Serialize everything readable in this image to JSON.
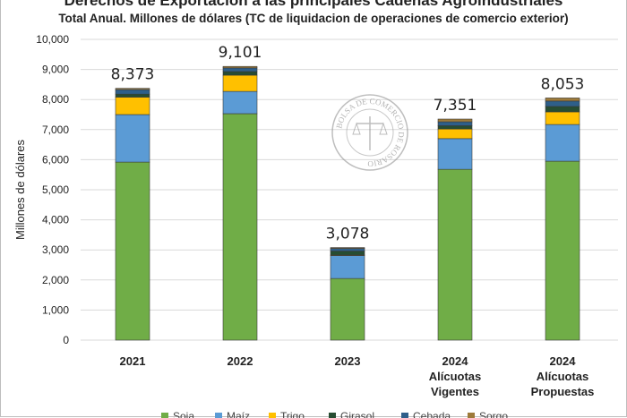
{
  "chart_data": {
    "type": "bar",
    "stacked": true,
    "title": "Derechos de Exportación a las principales Cadenas Agroindustriales",
    "subtitle": "Total Anual. Millones de dólares (TC de liquidacion de operaciones de comercio exterior)",
    "xlabel": "",
    "ylabel": "Millones de dólares",
    "ylim": [
      0,
      10000
    ],
    "yticks": [
      0,
      1000,
      2000,
      3000,
      4000,
      5000,
      6000,
      7000,
      8000,
      9000,
      10000
    ],
    "ytick_labels": [
      "0",
      "1,000",
      "2,000",
      "3,000",
      "4,000",
      "5,000",
      "6,000",
      "7,000",
      "8,000",
      "9,000",
      "10,000"
    ],
    "grid": true,
    "legend_position": "bottom",
    "categories": [
      [
        "2021"
      ],
      [
        "2022"
      ],
      [
        "2023"
      ],
      [
        "2024",
        "Alícuotas",
        "Vigentes"
      ],
      [
        "2024",
        "Alícuotas",
        "Propuestas"
      ]
    ],
    "totals": [
      8373,
      9101,
      3078,
      7351,
      8053
    ],
    "total_labels": [
      "8,373",
      "9,101",
      "3,078",
      "7,351",
      "8,053"
    ],
    "series": [
      {
        "name": "Soja",
        "color": "#70ad47",
        "values": [
          5920,
          7530,
          2050,
          5680,
          5950
        ]
      },
      {
        "name": "Maíz",
        "color": "#5b9bd5",
        "values": [
          1580,
          740,
          760,
          1020,
          1220
        ]
      },
      {
        "name": "Trigo",
        "color": "#ffc000",
        "values": [
          580,
          540,
          20,
          320,
          420
        ]
      },
      {
        "name": "Girasol",
        "color": "#264d32",
        "values": [
          100,
          120,
          130,
          110,
          180
        ]
      },
      {
        "name": "Cebada",
        "color": "#2e5f8a",
        "values": [
          150,
          120,
          90,
          130,
          180
        ]
      },
      {
        "name": "Sorgo",
        "color": "#9e7b3a",
        "values": [
          43,
          51,
          28,
          91,
          103
        ]
      }
    ]
  },
  "watermark": {
    "text": "BOLSA DE COMERCIO DE ROSARIO"
  }
}
